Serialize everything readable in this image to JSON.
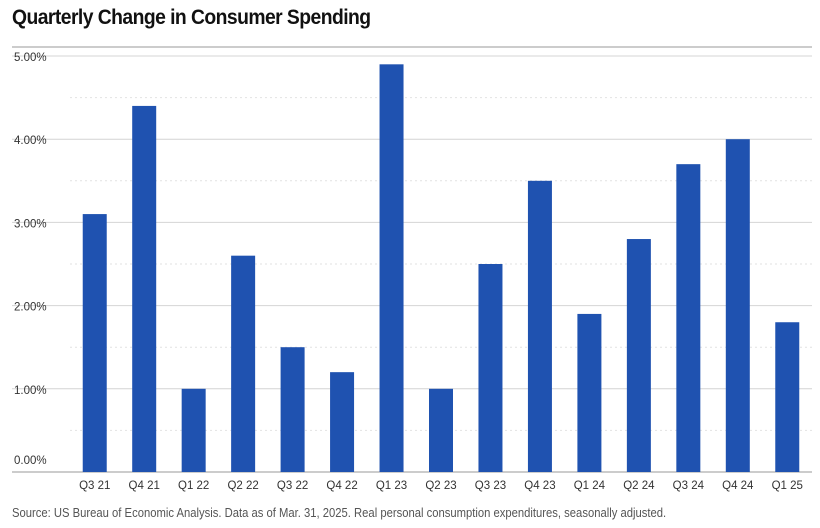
{
  "chart_data": {
    "type": "bar",
    "title": "Quarterly Change in Consumer Spending",
    "categories": [
      "Q3 21",
      "Q4 21",
      "Q1 22",
      "Q2 22",
      "Q3 22",
      "Q4 22",
      "Q1 23",
      "Q2 23",
      "Q3 23",
      "Q4 23",
      "Q1 24",
      "Q2 24",
      "Q3 24",
      "Q4 24",
      "Q1 25"
    ],
    "values": [
      3.1,
      4.4,
      1.0,
      2.6,
      1.5,
      1.2,
      4.9,
      1.0,
      2.5,
      3.5,
      1.9,
      2.8,
      3.7,
      4.0,
      1.8
    ],
    "ylim": [
      0,
      5
    ],
    "yticks": [
      0,
      1,
      2,
      3,
      4,
      5
    ],
    "ytick_labels": [
      "0.00%",
      "1.00%",
      "2.00%",
      "3.00%",
      "4.00%",
      "5.00%"
    ],
    "xlabel": "",
    "ylabel": "",
    "grid": true,
    "bar_color": "#1f52b0"
  },
  "source": "Source: US Bureau of Economic Analysis. Data as of Mar. 31, 2025. Real personal consumption expenditures, seasonally adjusted."
}
